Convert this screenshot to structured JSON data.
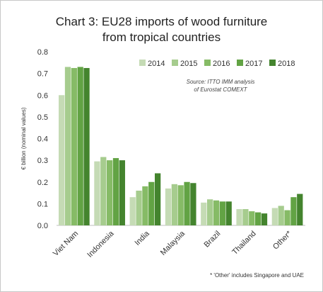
{
  "chart_data": {
    "type": "bar",
    "title": "Chart 3: EU28 imports of wood furniture from tropical countries",
    "title_lines": [
      "Chart 3: EU28 imports of wood furniture",
      "from tropical countries"
    ],
    "ylabel": "€ billion (nominal values)",
    "xlabel": "",
    "ylim": [
      0,
      0.8
    ],
    "yticks": [
      "0.0",
      "0.1",
      "0.2",
      "0.3",
      "0.4",
      "0.5",
      "0.6",
      "0.7",
      "0.8"
    ],
    "grid": false,
    "legend_position": "top-right",
    "categories": [
      "Viet Nam",
      "Indonesia",
      "India",
      "Malaysia",
      "Brazil",
      "Thailand",
      "Other*"
    ],
    "series": [
      {
        "name": "2014",
        "color": "#c5dbb5",
        "values": [
          0.6,
          0.295,
          0.13,
          0.17,
          0.105,
          0.075,
          0.08
        ]
      },
      {
        "name": "2015",
        "color": "#a6cc8e",
        "values": [
          0.73,
          0.315,
          0.16,
          0.19,
          0.12,
          0.075,
          0.09
        ]
      },
      {
        "name": "2016",
        "color": "#86bb66",
        "values": [
          0.725,
          0.3,
          0.18,
          0.185,
          0.115,
          0.065,
          0.07
        ]
      },
      {
        "name": "2017",
        "color": "#62a344",
        "values": [
          0.73,
          0.31,
          0.2,
          0.2,
          0.11,
          0.06,
          0.13
        ]
      },
      {
        "name": "2018",
        "color": "#44842e",
        "values": [
          0.725,
          0.3,
          0.24,
          0.195,
          0.11,
          0.055,
          0.145
        ]
      }
    ],
    "source_lines": [
      "Source: ITTO IMM analysis",
      "of Eurostat COMEXT"
    ],
    "footnote": "* 'Other' includes Singapore and UAE"
  }
}
